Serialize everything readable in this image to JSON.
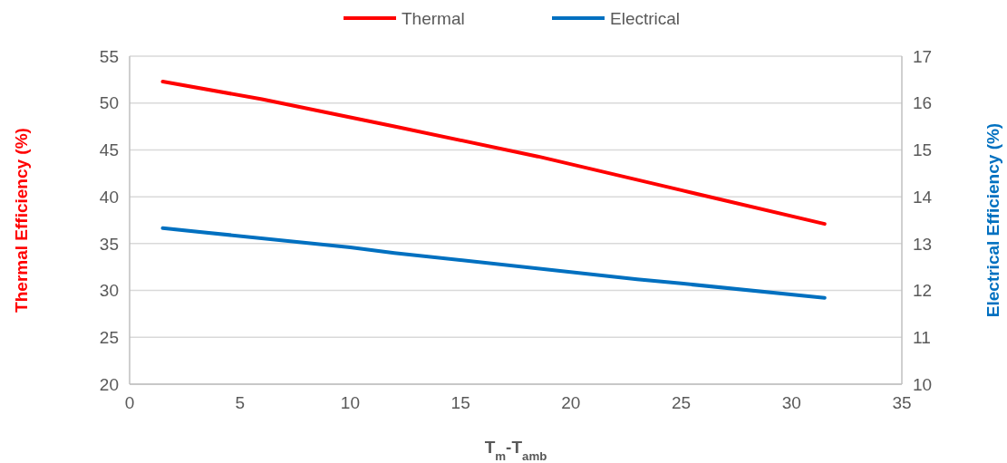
{
  "chart_data": {
    "type": "line",
    "xlabel": "T$_{m}$-T$_{amb}$",
    "ylabel": "Thermal Efficiency (%)",
    "y2label": "Electrical Efficiency (%)",
    "xlim": [
      0,
      35
    ],
    "xticks": [
      0,
      5,
      10,
      15,
      20,
      25,
      30,
      35
    ],
    "ylim": [
      20,
      55
    ],
    "yticks": [
      20,
      25,
      30,
      35,
      40,
      45,
      50,
      55
    ],
    "y2lim": [
      10,
      17
    ],
    "y2ticks": [
      10,
      11,
      12,
      13,
      14,
      15,
      16,
      17
    ],
    "grid": "y",
    "legend": "top",
    "marker": "none",
    "line_style": "solid",
    "series": [
      {
        "name": "Thermal",
        "color": "#ff0000",
        "x": [
          1.5,
          6,
          12,
          18.5,
          25,
          31.5
        ],
        "values": [
          52.3,
          50.4,
          47.5,
          44.3,
          40.7,
          37.1
        ]
      },
      {
        "name": "Electrical",
        "color": "#0070c0",
        "axis": "y2",
        "x": [
          1.5,
          10,
          12,
          23,
          25,
          31.5
        ],
        "values": [
          13.33,
          12.92,
          12.8,
          12.24,
          12.15,
          11.84
        ]
      }
    ]
  }
}
